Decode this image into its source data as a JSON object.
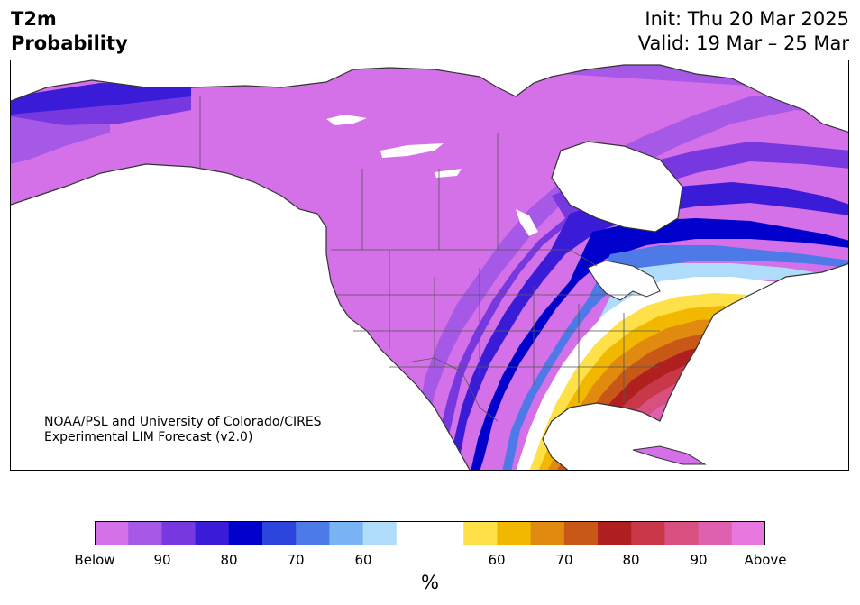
{
  "title": {
    "line1": "T2m",
    "line2": "Probability"
  },
  "header": {
    "init": "Init: Thu 20 Mar 2025",
    "valid": "Valid: 19 Mar – 25 Mar"
  },
  "credit": {
    "line1": "NOAA/PSL and University of Colorado/CIRES",
    "line2": "Experimental LIM Forecast (v2.0)"
  },
  "colorbar": {
    "colors": [
      "#d470e8",
      "#a658e6",
      "#7838e0",
      "#3a1cd8",
      "#0000cc",
      "#2a44dc",
      "#4e7ae8",
      "#78b4f4",
      "#b0dcfc",
      "#ffffff",
      "#ffffff",
      "#fee048",
      "#f2b800",
      "#e08a10",
      "#c85818",
      "#b02020",
      "#c83848",
      "#d85080",
      "#e060b0",
      "#e878e0"
    ],
    "tick_labels": [
      "Below",
      "90",
      "80",
      "70",
      "60",
      "60",
      "70",
      "80",
      "90",
      "Above"
    ],
    "unit": "%"
  }
}
